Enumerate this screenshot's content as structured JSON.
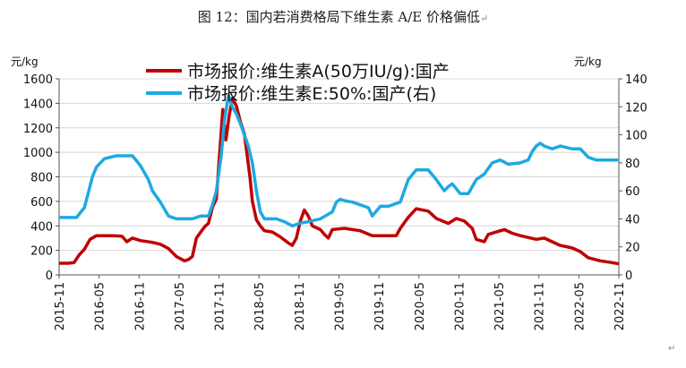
{
  "caption": "图 12：国内若消费格局下维生素 A/E 价格偏低",
  "caption_mark": "↵",
  "corner_mark": "↵",
  "chart_data": {
    "type": "line",
    "title": "图 12：国内若消费格局下维生素 A/E 价格偏低",
    "left_axis": {
      "unit": "元/kg",
      "range": [
        0,
        1600
      ],
      "ticks": [
        0,
        200,
        400,
        600,
        800,
        1000,
        1200,
        1400,
        1600
      ]
    },
    "right_axis": {
      "unit": "元/kg",
      "range": [
        0,
        140
      ],
      "ticks": [
        0,
        20,
        40,
        60,
        80,
        100,
        120,
        140
      ]
    },
    "x_axis": {
      "range": [
        2015.833,
        2022.833
      ],
      "tick_labels": [
        "2015-11",
        "2016-05",
        "2016-11",
        "2017-05",
        "2017-11",
        "2018-05",
        "2018-11",
        "2019-05",
        "2019-11",
        "2020-05",
        "2020-11",
        "2021-05",
        "2021-11",
        "2022-05",
        "2022-11"
      ],
      "tick_values": [
        2015.833,
        2016.333,
        2016.833,
        2017.333,
        2017.833,
        2018.333,
        2018.833,
        2019.333,
        2019.833,
        2020.333,
        2020.833,
        2021.333,
        2021.833,
        2022.333,
        2022.833
      ]
    },
    "legend_position": "top-center",
    "series": [
      {
        "name": "市场报价:维生素A(50万IU/g):国产",
        "axis": "left",
        "color": "#c00000",
        "points": [
          [
            2015.833,
            95
          ],
          [
            2015.95,
            95
          ],
          [
            2016.02,
            100
          ],
          [
            2016.08,
            160
          ],
          [
            2016.15,
            210
          ],
          [
            2016.22,
            290
          ],
          [
            2016.3,
            320
          ],
          [
            2016.5,
            320
          ],
          [
            2016.62,
            315
          ],
          [
            2016.68,
            270
          ],
          [
            2016.75,
            300
          ],
          [
            2016.85,
            280
          ],
          [
            2017.0,
            265
          ],
          [
            2017.1,
            250
          ],
          [
            2017.2,
            215
          ],
          [
            2017.3,
            150
          ],
          [
            2017.4,
            115
          ],
          [
            2017.45,
            125
          ],
          [
            2017.5,
            150
          ],
          [
            2017.55,
            300
          ],
          [
            2017.65,
            390
          ],
          [
            2017.7,
            420
          ],
          [
            2017.75,
            550
          ],
          [
            2017.8,
            620
          ],
          [
            2017.88,
            1350
          ],
          [
            2017.92,
            1100
          ],
          [
            2017.96,
            1300
          ],
          [
            2018.0,
            1440
          ],
          [
            2018.05,
            1380
          ],
          [
            2018.1,
            1250
          ],
          [
            2018.15,
            1150
          ],
          [
            2018.22,
            800
          ],
          [
            2018.25,
            600
          ],
          [
            2018.3,
            450
          ],
          [
            2018.35,
            400
          ],
          [
            2018.4,
            360
          ],
          [
            2018.5,
            350
          ],
          [
            2018.6,
            310
          ],
          [
            2018.7,
            260
          ],
          [
            2018.75,
            240
          ],
          [
            2018.8,
            300
          ],
          [
            2018.85,
            440
          ],
          [
            2018.9,
            530
          ],
          [
            2018.95,
            480
          ],
          [
            2019.0,
            400
          ],
          [
            2019.1,
            370
          ],
          [
            2019.15,
            330
          ],
          [
            2019.2,
            300
          ],
          [
            2019.25,
            370
          ],
          [
            2019.4,
            380
          ],
          [
            2019.6,
            360
          ],
          [
            2019.75,
            320
          ],
          [
            2019.9,
            320
          ],
          [
            2020.05,
            320
          ],
          [
            2020.1,
            380
          ],
          [
            2020.2,
            470
          ],
          [
            2020.3,
            540
          ],
          [
            2020.45,
            520
          ],
          [
            2020.55,
            460
          ],
          [
            2020.7,
            420
          ],
          [
            2020.8,
            460
          ],
          [
            2020.9,
            440
          ],
          [
            2021.0,
            380
          ],
          [
            2021.05,
            290
          ],
          [
            2021.15,
            270
          ],
          [
            2021.2,
            330
          ],
          [
            2021.3,
            350
          ],
          [
            2021.4,
            370
          ],
          [
            2021.5,
            340
          ],
          [
            2021.6,
            320
          ],
          [
            2021.8,
            290
          ],
          [
            2021.9,
            300
          ],
          [
            2022.0,
            270
          ],
          [
            2022.1,
            240
          ],
          [
            2022.25,
            220
          ],
          [
            2022.35,
            190
          ],
          [
            2022.45,
            140
          ],
          [
            2022.6,
            115
          ],
          [
            2022.75,
            100
          ],
          [
            2022.833,
            90
          ]
        ]
      },
      {
        "name": "市场报价:维生素E:50%:国产(右)",
        "axis": "right",
        "color": "#1fa9e1",
        "points": [
          [
            2015.833,
            41
          ],
          [
            2016.05,
            41
          ],
          [
            2016.15,
            48
          ],
          [
            2016.25,
            70
          ],
          [
            2016.3,
            77
          ],
          [
            2016.4,
            83
          ],
          [
            2016.55,
            85
          ],
          [
            2016.75,
            85
          ],
          [
            2016.85,
            78
          ],
          [
            2016.95,
            68
          ],
          [
            2017.0,
            60
          ],
          [
            2017.1,
            52
          ],
          [
            2017.2,
            42
          ],
          [
            2017.3,
            40
          ],
          [
            2017.5,
            40
          ],
          [
            2017.6,
            42
          ],
          [
            2017.7,
            42
          ],
          [
            2017.75,
            50
          ],
          [
            2017.8,
            60
          ],
          [
            2017.86,
            85
          ],
          [
            2017.9,
            110
          ],
          [
            2017.95,
            128
          ],
          [
            2018.0,
            120
          ],
          [
            2018.05,
            115
          ],
          [
            2018.1,
            108
          ],
          [
            2018.15,
            100
          ],
          [
            2018.2,
            92
          ],
          [
            2018.25,
            80
          ],
          [
            2018.3,
            60
          ],
          [
            2018.35,
            45
          ],
          [
            2018.4,
            40
          ],
          [
            2018.55,
            40
          ],
          [
            2018.65,
            38
          ],
          [
            2018.75,
            35
          ],
          [
            2018.85,
            37
          ],
          [
            2018.95,
            38
          ],
          [
            2019.1,
            40
          ],
          [
            2019.25,
            45
          ],
          [
            2019.3,
            52
          ],
          [
            2019.35,
            54
          ],
          [
            2019.4,
            53
          ],
          [
            2019.5,
            52
          ],
          [
            2019.6,
            50
          ],
          [
            2019.7,
            48
          ],
          [
            2019.75,
            42
          ],
          [
            2019.85,
            49
          ],
          [
            2019.95,
            49
          ],
          [
            2020.1,
            52
          ],
          [
            2020.2,
            68
          ],
          [
            2020.3,
            75
          ],
          [
            2020.45,
            75
          ],
          [
            2020.55,
            68
          ],
          [
            2020.65,
            60
          ],
          [
            2020.7,
            63
          ],
          [
            2020.75,
            65
          ],
          [
            2020.85,
            58
          ],
          [
            2020.95,
            58
          ],
          [
            2021.05,
            68
          ],
          [
            2021.15,
            72
          ],
          [
            2021.25,
            80
          ],
          [
            2021.35,
            82
          ],
          [
            2021.45,
            79
          ],
          [
            2021.6,
            80
          ],
          [
            2021.7,
            82
          ],
          [
            2021.75,
            88
          ],
          [
            2021.8,
            92
          ],
          [
            2021.85,
            94
          ],
          [
            2021.9,
            92
          ],
          [
            2022.0,
            90
          ],
          [
            2022.1,
            92
          ],
          [
            2022.25,
            90
          ],
          [
            2022.35,
            90
          ],
          [
            2022.45,
            84
          ],
          [
            2022.55,
            82
          ],
          [
            2022.833,
            82
          ]
        ]
      }
    ]
  }
}
